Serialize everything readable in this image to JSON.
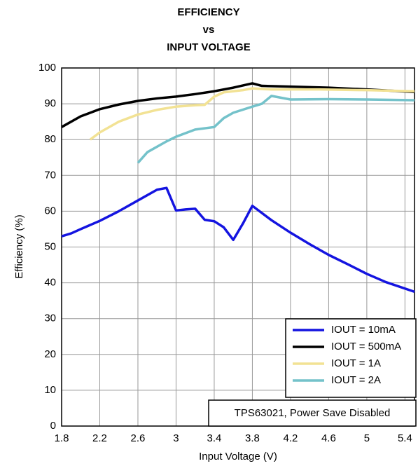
{
  "chart_data": {
    "type": "line",
    "title": [
      "EFFICIENCY",
      "vs",
      "INPUT VOLTAGE"
    ],
    "xlabel": "Input Voltage (V)",
    "ylabel": "Efficiency (%)",
    "annotation": "TPS63021, Power Save Disabled",
    "xlim": [
      1.8,
      5.5
    ],
    "xticks": [
      1.8,
      2.2,
      2.6,
      3,
      3.4,
      3.8,
      4.2,
      4.6,
      5,
      5.4
    ],
    "ylim": [
      0,
      100
    ],
    "yticks": [
      0,
      10,
      20,
      30,
      40,
      50,
      60,
      70,
      80,
      90,
      100
    ],
    "grid": true,
    "legend": "lower right",
    "series": [
      {
        "name": "IOUT = 10mA",
        "color": "#1414e0",
        "x": [
          1.8,
          1.9,
          2.0,
          2.2,
          2.4,
          2.6,
          2.8,
          2.9,
          3.0,
          3.1,
          3.2,
          3.3,
          3.4,
          3.5,
          3.6,
          3.7,
          3.8,
          4.0,
          4.2,
          4.4,
          4.6,
          4.8,
          5.0,
          5.2,
          5.5
        ],
        "values": [
          53,
          53.8,
          55,
          57.3,
          60,
          63,
          66,
          66.5,
          60.2,
          60.5,
          60.7,
          57.6,
          57.2,
          55.5,
          52,
          56.5,
          61.5,
          57.5,
          54,
          50.8,
          47.8,
          45.2,
          42.5,
          40.2,
          37.5
        ]
      },
      {
        "name": "IOUT = 500mA",
        "color": "#000000",
        "x": [
          1.8,
          2.0,
          2.2,
          2.4,
          2.6,
          2.8,
          3.0,
          3.2,
          3.4,
          3.6,
          3.8,
          3.9,
          4.2,
          4.6,
          5.0,
          5.5
        ],
        "values": [
          83.5,
          86.5,
          88.5,
          89.8,
          90.8,
          91.5,
          92,
          92.7,
          93.5,
          94.5,
          95.7,
          95,
          94.8,
          94.5,
          94,
          93.3
        ]
      },
      {
        "name": "IOUT = 1A",
        "color": "#f2e294",
        "x": [
          2.1,
          2.2,
          2.4,
          2.6,
          2.8,
          3.0,
          3.2,
          3.3,
          3.4,
          3.5,
          3.7,
          3.8,
          4.0,
          4.5,
          5.0,
          5.5
        ],
        "values": [
          80,
          82,
          85,
          87,
          88.3,
          89.2,
          89.6,
          89.7,
          92,
          93.2,
          93.8,
          94.3,
          94,
          94,
          93.8,
          93.5
        ]
      },
      {
        "name": "IOUT = 2A",
        "color": "#74c2ca",
        "x": [
          2.6,
          2.7,
          2.9,
          3.0,
          3.2,
          3.4,
          3.5,
          3.6,
          3.8,
          3.9,
          4.0,
          4.2,
          4.6,
          5.0,
          5.5
        ],
        "values": [
          73.5,
          76.5,
          79.5,
          80.8,
          82.8,
          83.5,
          86,
          87.5,
          89.2,
          90,
          92.2,
          91.2,
          91.3,
          91.2,
          91
        ]
      }
    ]
  }
}
